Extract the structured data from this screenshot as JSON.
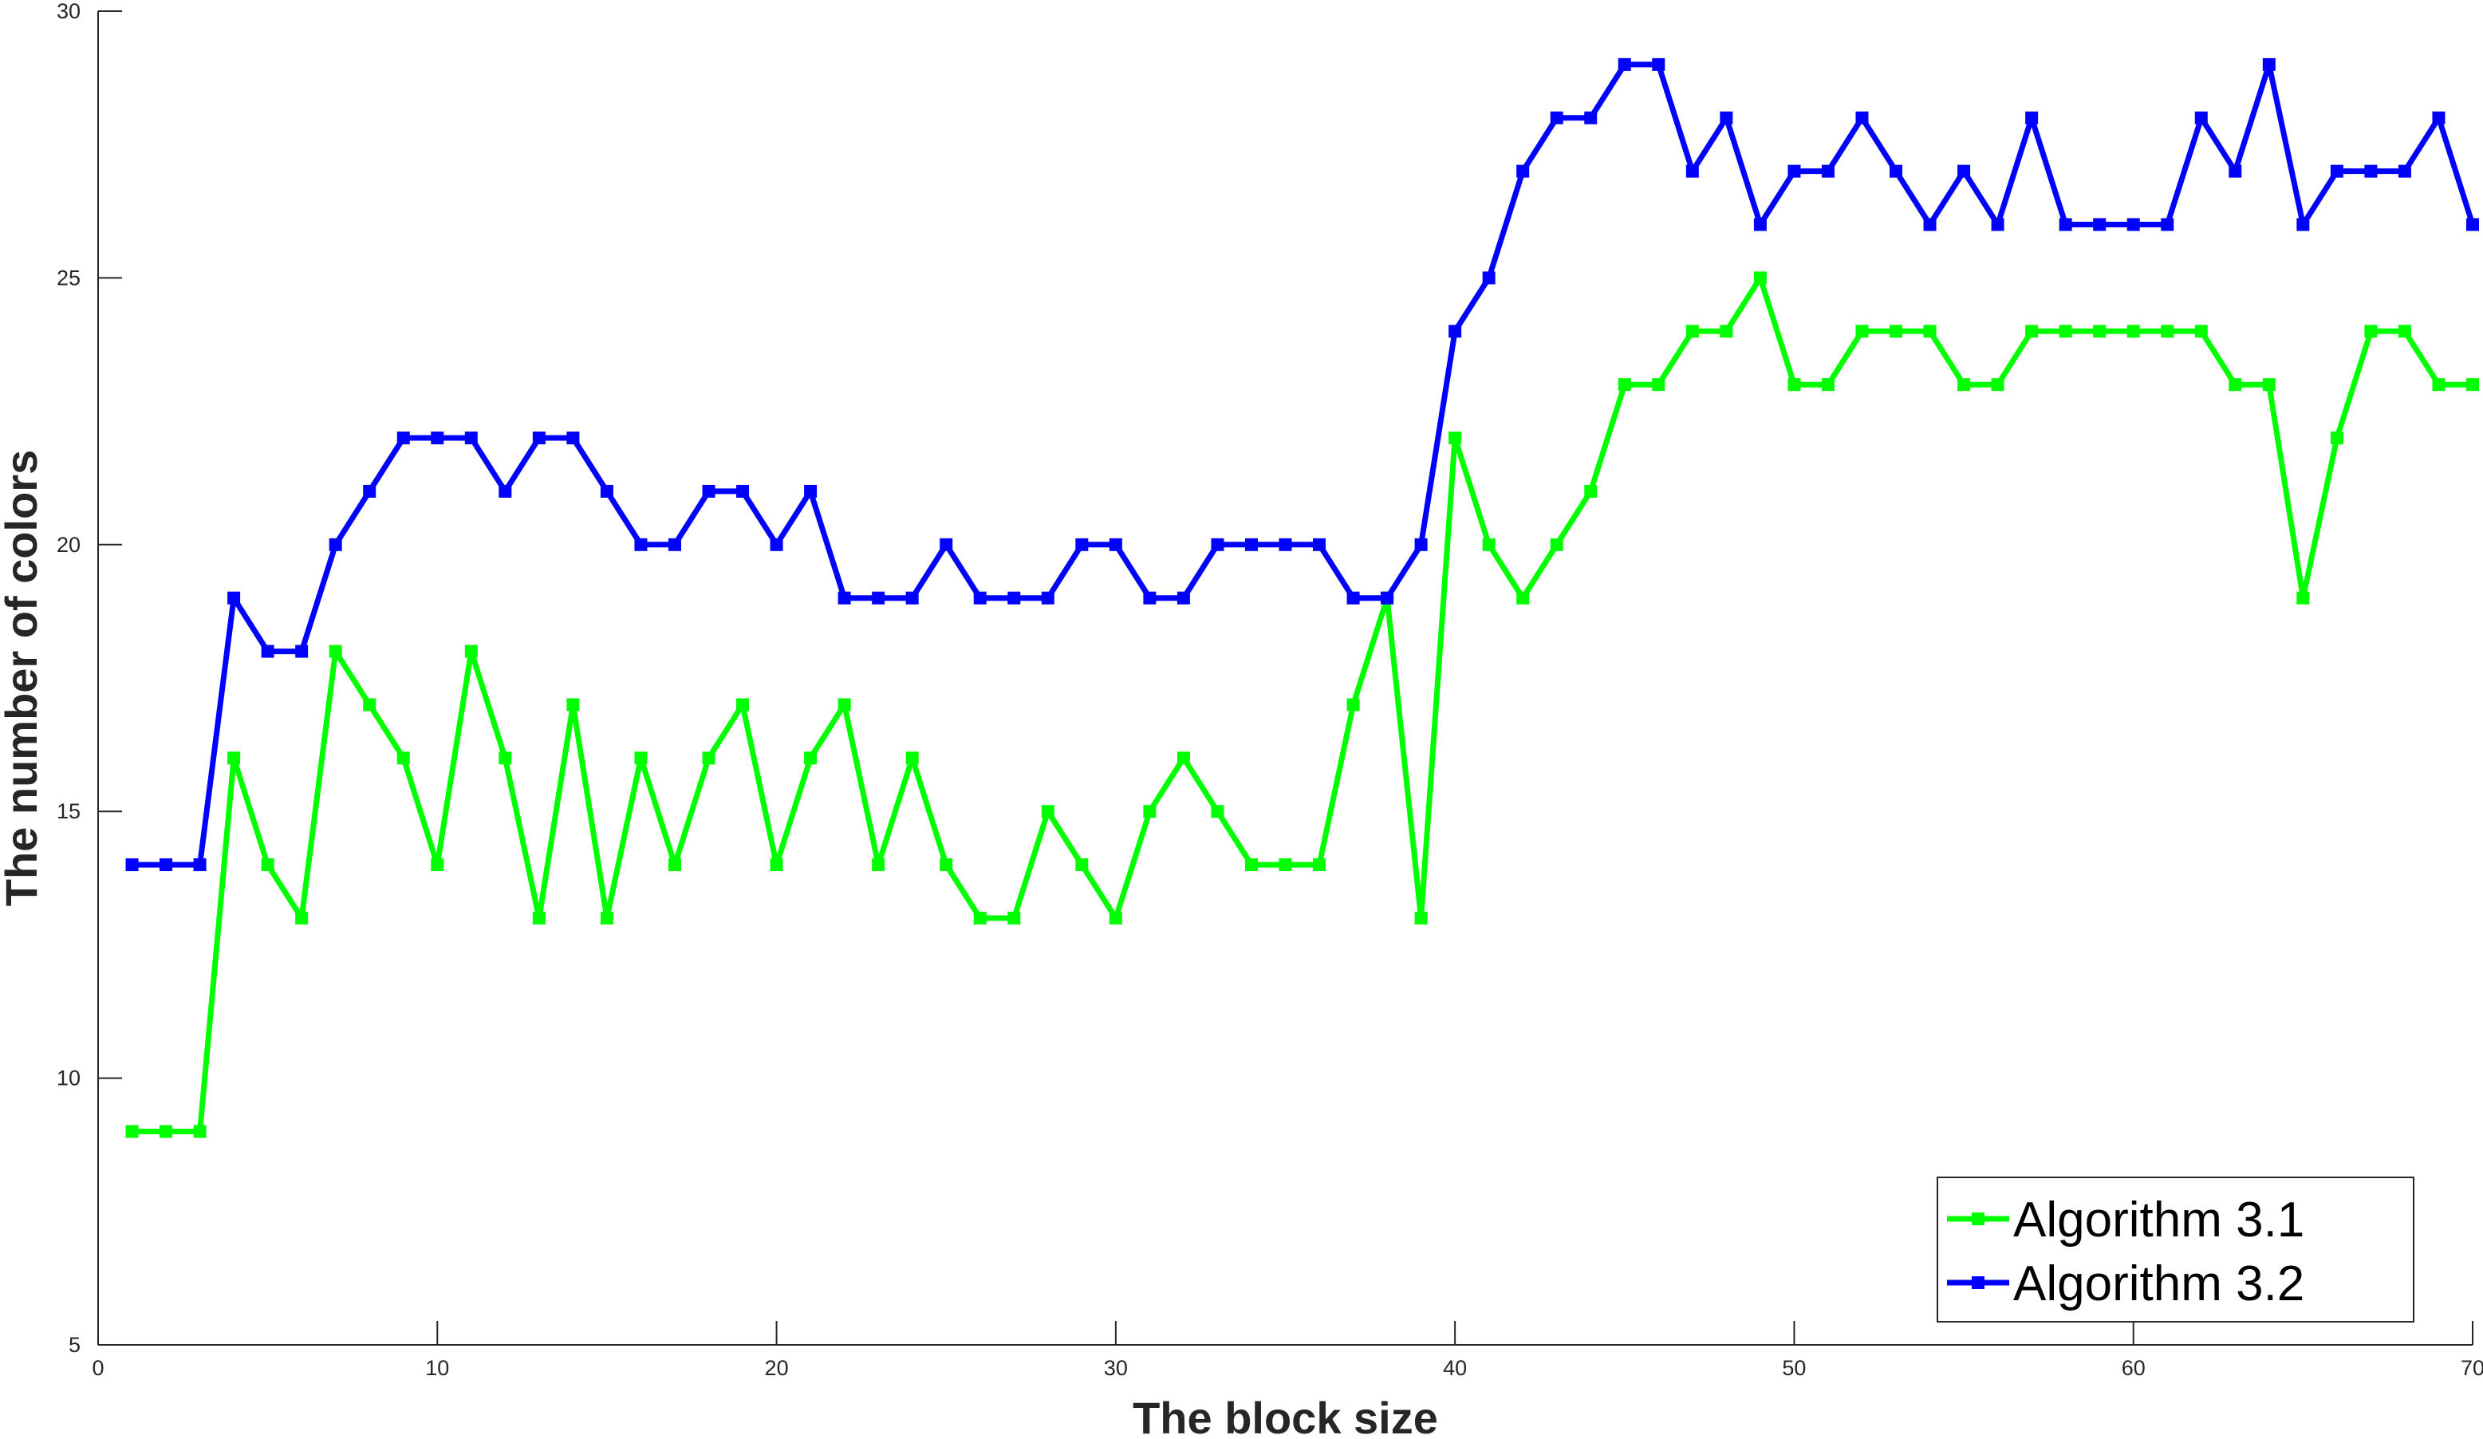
{
  "chart_data": {
    "type": "line",
    "title": "",
    "xlabel": "The block size",
    "ylabel": "The number of colors",
    "xlim": [
      0,
      70
    ],
    "ylim": [
      5,
      30
    ],
    "xticks": [
      0,
      10,
      20,
      30,
      40,
      50,
      60,
      70
    ],
    "yticks": [
      5,
      10,
      15,
      20,
      25,
      30
    ],
    "grid": false,
    "legend_position": "bottom-right",
    "x": [
      1,
      2,
      3,
      4,
      5,
      6,
      7,
      8,
      9,
      10,
      11,
      12,
      13,
      14,
      15,
      16,
      17,
      18,
      19,
      20,
      21,
      22,
      23,
      24,
      25,
      26,
      27,
      28,
      29,
      30,
      31,
      32,
      33,
      34,
      35,
      36,
      37,
      38,
      39,
      40,
      41,
      42,
      43,
      44,
      45,
      46,
      47,
      48,
      49,
      50,
      51,
      52,
      53,
      54,
      55,
      56,
      57,
      58,
      59,
      60,
      61,
      62,
      63,
      64,
      65,
      66,
      67,
      68,
      69,
      70
    ],
    "series": [
      {
        "name": "Algorithm 3.1",
        "color": "#00ff00",
        "values": [
          9,
          9,
          9,
          16,
          14,
          13,
          18,
          17,
          16,
          14,
          18,
          16,
          13,
          17,
          13,
          16,
          14,
          16,
          17,
          14,
          16,
          17,
          14,
          16,
          14,
          13,
          13,
          15,
          14,
          13,
          15,
          16,
          15,
          14,
          14,
          14,
          17,
          19,
          13,
          22,
          20,
          19,
          20,
          21,
          23,
          23,
          24,
          24,
          25,
          23,
          23,
          24,
          24,
          24,
          23,
          23,
          24,
          24,
          24,
          24,
          24,
          24,
          23,
          23,
          19,
          22,
          24,
          24,
          23,
          23
        ]
      },
      {
        "name": "Algorithm 3.2",
        "color": "#0000ff",
        "values": [
          14,
          14,
          14,
          19,
          18,
          18,
          20,
          21,
          22,
          22,
          22,
          21,
          22,
          22,
          21,
          20,
          20,
          21,
          21,
          20,
          21,
          19,
          19,
          19,
          20,
          19,
          19,
          19,
          20,
          20,
          19,
          19,
          20,
          20,
          20,
          20,
          19,
          19,
          20,
          24,
          25,
          27,
          28,
          28,
          29,
          29,
          27,
          28,
          26,
          27,
          27,
          28,
          27,
          26,
          27,
          26,
          28,
          26,
          26,
          26,
          26,
          28,
          27,
          29,
          26,
          27,
          27,
          27,
          28,
          26
        ]
      }
    ]
  }
}
